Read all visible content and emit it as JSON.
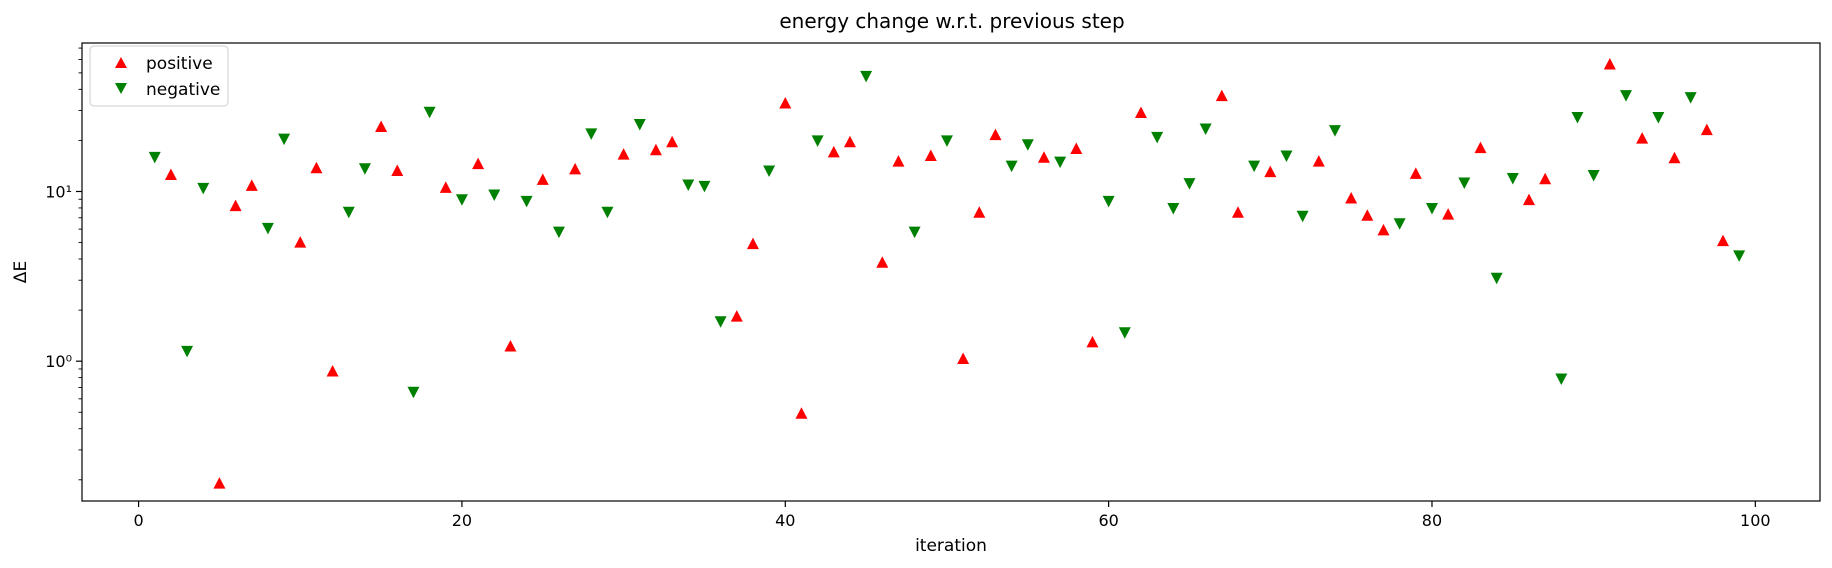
{
  "chart_data": {
    "type": "scatter",
    "title": "energy change w.r.t. previous step",
    "xlabel": "iteration",
    "ylabel": "ΔE",
    "xlim": [
      -3.5,
      104
    ],
    "ylim": [
      0.15,
      75
    ],
    "yscale": "log",
    "xticks": [
      0,
      20,
      40,
      60,
      80,
      100
    ],
    "xtick_labels": [
      "0",
      "20",
      "40",
      "60",
      "80",
      "100"
    ],
    "yticks": [
      1,
      10
    ],
    "ytick_labels": [
      "10⁰",
      "10¹"
    ],
    "grid": false,
    "legend": {
      "placement": "top-left"
    },
    "series": [
      {
        "name": "positive",
        "marker": "triangle-up",
        "color": "#ff0000",
        "x": [
          2,
          5,
          6,
          7,
          10,
          11,
          12,
          15,
          16,
          19,
          21,
          23,
          25,
          27,
          30,
          32,
          33,
          37,
          38,
          40,
          41,
          43,
          44,
          46,
          47,
          49,
          51,
          52,
          53,
          56,
          58,
          59,
          62,
          67,
          68,
          70,
          73,
          75,
          76,
          77,
          79,
          81,
          83,
          86,
          87,
          91,
          93,
          95,
          97,
          98
        ],
        "y": [
          12.5,
          0.19,
          8.2,
          10.8,
          5.0,
          13.7,
          0.87,
          24.0,
          13.2,
          10.5,
          14.5,
          1.22,
          11.7,
          13.5,
          16.5,
          17.5,
          19.5,
          1.83,
          4.9,
          33.0,
          0.49,
          17.0,
          19.5,
          3.8,
          15.0,
          16.2,
          1.03,
          7.5,
          21.5,
          15.8,
          17.8,
          1.29,
          29.0,
          36.5,
          7.5,
          13.0,
          15.0,
          9.1,
          7.2,
          5.9,
          12.7,
          7.3,
          18.0,
          8.9,
          11.8,
          56.0,
          20.5,
          15.7,
          23.0,
          5.1
        ]
      },
      {
        "name": "negative",
        "marker": "triangle-down",
        "color": "#008000",
        "x": [
          1,
          3,
          4,
          8,
          9,
          13,
          14,
          17,
          18,
          20,
          22,
          24,
          26,
          28,
          29,
          31,
          34,
          35,
          36,
          39,
          42,
          45,
          48,
          50,
          54,
          55,
          57,
          60,
          61,
          63,
          64,
          65,
          66,
          69,
          71,
          72,
          74,
          78,
          80,
          82,
          84,
          85,
          88,
          89,
          90,
          92,
          94,
          96,
          99
        ],
        "y": [
          16.0,
          1.15,
          10.5,
          6.1,
          20.5,
          7.6,
          13.7,
          0.66,
          29.5,
          9.0,
          9.6,
          8.8,
          5.8,
          22.0,
          7.6,
          25.0,
          11.0,
          10.8,
          1.72,
          13.3,
          20.0,
          48.0,
          5.8,
          20.0,
          14.2,
          19.0,
          15.0,
          8.8,
          1.48,
          21.0,
          8.0,
          11.2,
          23.5,
          14.2,
          16.3,
          7.2,
          23.0,
          6.5,
          8.0,
          11.3,
          3.1,
          12.0,
          0.79,
          27.5,
          12.5,
          37.0,
          27.5,
          36.0,
          4.2
        ]
      }
    ]
  }
}
